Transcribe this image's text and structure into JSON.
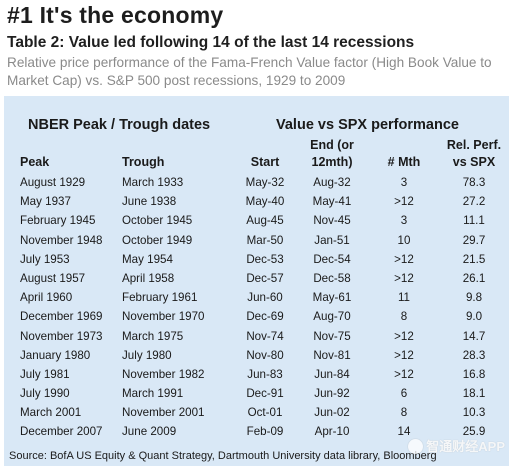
{
  "headline": "#1 It's the economy",
  "table_title": "Table 2: Value led following 14 of the last 14 recessions",
  "subtitle": "Relative price performance of the Fama-French Value factor (High Book Value to Market Cap) vs. S&P 500 post recessions, 1929 to 2009",
  "group_headers": {
    "nber": "NBER Peak / Trough dates",
    "value": "Value vs SPX performance"
  },
  "columns": {
    "peak": "Peak",
    "trough": "Trough",
    "start": "Start",
    "end_line1": "End (or",
    "end_line2": "12mth)",
    "mth": "# Mth",
    "rel_line1": "Rel. Perf.",
    "rel_line2": "vs SPX"
  },
  "rows": [
    {
      "peak": "August 1929",
      "trough": "March 1933",
      "start": "May-32",
      "end": "Aug-32",
      "mth": "3",
      "rel": "78.3"
    },
    {
      "peak": "May 1937",
      "trough": "June 1938",
      "start": "May-40",
      "end": "May-41",
      "mth": ">12",
      "rel": "27.2"
    },
    {
      "peak": "February 1945",
      "trough": "October 1945",
      "start": "Aug-45",
      "end": "Nov-45",
      "mth": "3",
      "rel": "11.1"
    },
    {
      "peak": "November 1948",
      "trough": "October 1949",
      "start": "Mar-50",
      "end": "Jan-51",
      "mth": "10",
      "rel": "29.7"
    },
    {
      "peak": "July 1953",
      "trough": "May 1954",
      "start": "Dec-53",
      "end": "Dec-54",
      "mth": ">12",
      "rel": "21.5"
    },
    {
      "peak": "August 1957",
      "trough": "April 1958",
      "start": "Dec-57",
      "end": "Dec-58",
      "mth": ">12",
      "rel": "26.1"
    },
    {
      "peak": "April 1960",
      "trough": "February 1961",
      "start": "Jun-60",
      "end": "May-61",
      "mth": "11",
      "rel": "9.8"
    },
    {
      "peak": "December 1969",
      "trough": "November 1970",
      "start": "Dec-69",
      "end": "Aug-70",
      "mth": "8",
      "rel": "9.0"
    },
    {
      "peak": "November 1973",
      "trough": "March 1975",
      "start": "Nov-74",
      "end": "Nov-75",
      "mth": ">12",
      "rel": "14.7"
    },
    {
      "peak": "January 1980",
      "trough": "July 1980",
      "start": "Nov-80",
      "end": "Nov-81",
      "mth": ">12",
      "rel": "28.3"
    },
    {
      "peak": "July 1981",
      "trough": "November 1982",
      "start": "Jun-83",
      "end": "Jun-84",
      "mth": ">12",
      "rel": "16.8"
    },
    {
      "peak": "July 1990",
      "trough": "March 1991",
      "start": "Dec-91",
      "end": "Jun-92",
      "mth": "6",
      "rel": "18.1"
    },
    {
      "peak": "March 2001",
      "trough": "November 2001",
      "start": "Oct-01",
      "end": "Jun-02",
      "mth": "8",
      "rel": "10.3"
    },
    {
      "peak": "December 2007",
      "trough": "June 2009",
      "start": "Feb-09",
      "end": "Apr-10",
      "mth": "14",
      "rel": "25.9"
    }
  ],
  "source": "Source: BofA US Equity & Quant Strategy, Dartmouth University data library, Bloomberg",
  "watermark": "智通财经APP",
  "colors": {
    "panel": "#d9e8f6",
    "subtitle": "#8a8a8a"
  }
}
